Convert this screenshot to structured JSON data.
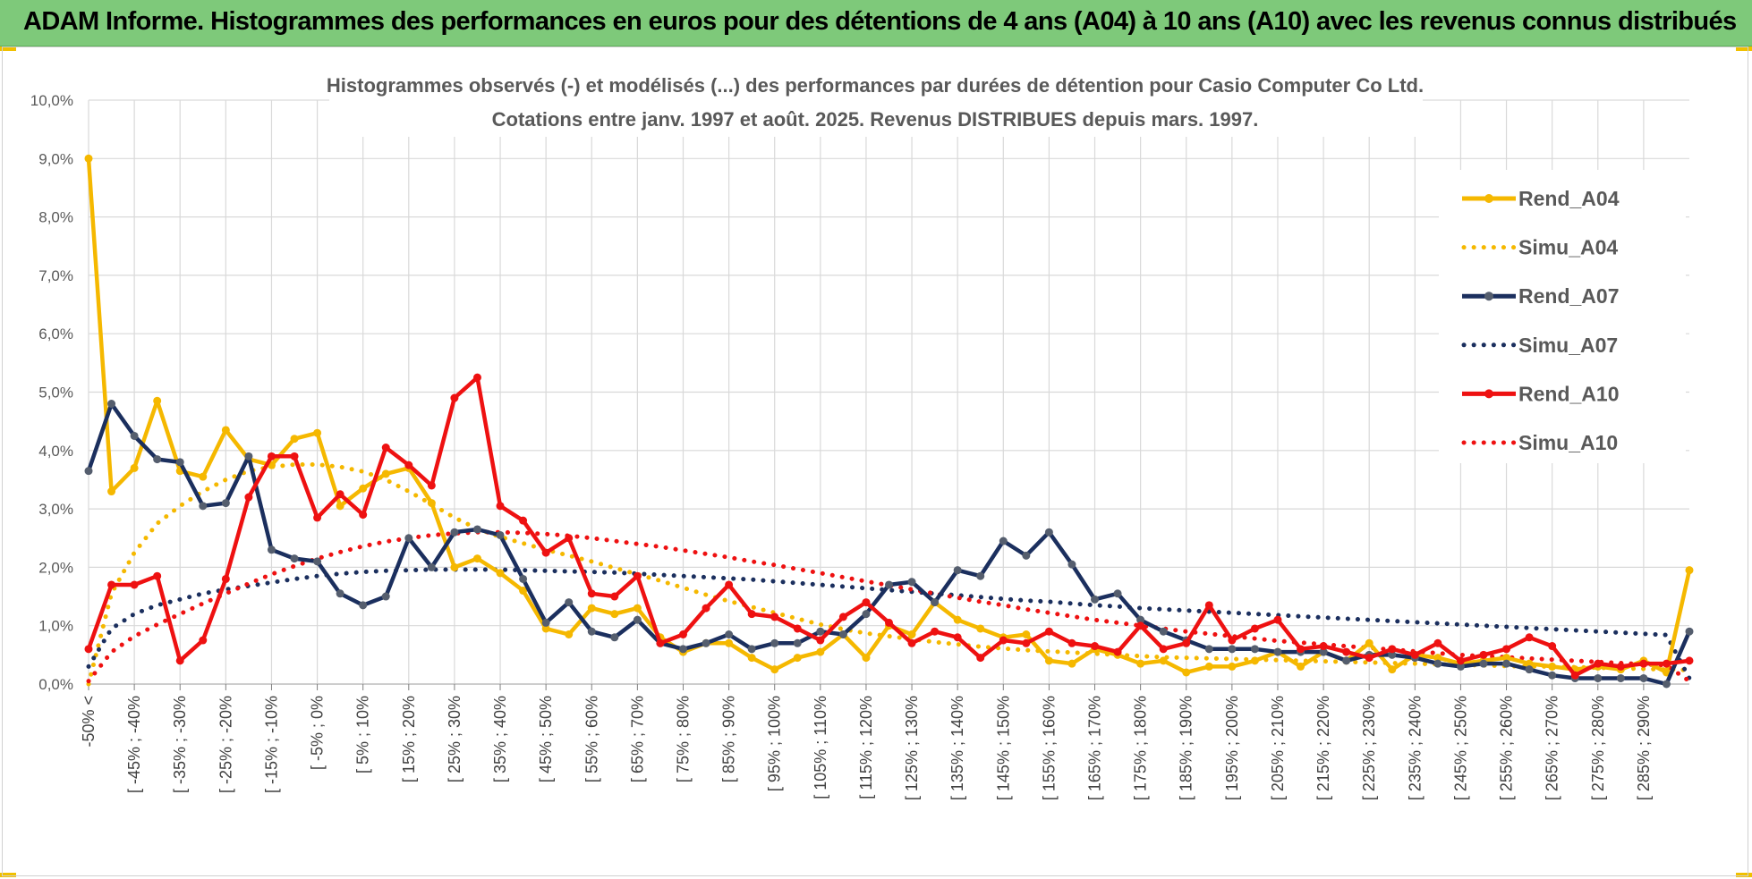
{
  "banner": {
    "title": "ADAM Informe. Histogrammes des performances en euros pour des détentions de 4 ans (A04) à 10 ans (A10) avec les revenus connus distribués"
  },
  "colors": {
    "banner_bg": "#7ec97a",
    "A04": "#f5b800",
    "A07": "#1b2f5e",
    "A10": "#ee1111",
    "grid": "#d9d9d9"
  },
  "chart_data": {
    "type": "line",
    "title_lines": [
      "Histogrammes observés (-) et modélisés (...) des performances par durées de détention pour Casio Computer Co Ltd.",
      "Cotations entre janv. 1997 et août. 2025. Revenus DISTRIBUES depuis mars. 1997."
    ],
    "ylim": [
      0,
      10
    ],
    "y_ticks": [
      "0,0%",
      "1,0%",
      "2,0%",
      "3,0%",
      "4,0%",
      "5,0%",
      "6,0%",
      "7,0%",
      "8,0%",
      "9,0%",
      "10,0%"
    ],
    "grid": true,
    "legend_position": "right",
    "x_labels": [
      "-50% <",
      "[ -45% ; -40%",
      "[ -35% ; -30%",
      "[ -25% ; -20%",
      "[ -15% ; -10%",
      "[ -5% ; 0%",
      "[ 5% ; 10%",
      "[ 15% ; 20%",
      "[ 25% ; 30%",
      "[ 35% ; 40%",
      "[ 45% ; 50%",
      "[ 55% ; 60%",
      "[ 65% ; 70%",
      "[ 75% ; 80%",
      "[ 85% ; 90%",
      "[ 95% ; 100%",
      "[ 105% ; 110%",
      "[ 115% ; 120%",
      "[ 125% ; 130%",
      "[ 135% ; 140%",
      "[ 145% ; 150%",
      "[ 155% ; 160%",
      "[ 165% ; 170%",
      "[ 175% ; 180%",
      "[ 185% ; 190%",
      "[ 195% ; 200%",
      "[ 205% ; 210%",
      "[ 215% ; 220%",
      "[ 225% ; 230%",
      "[ 235% ; 240%",
      "[ 245% ; 250%",
      "[ 255% ; 260%",
      "[ 265% ; 270%",
      "[ 275% ; 280%",
      "[ 285% ; 290%"
    ],
    "series": [
      {
        "name": "Rend_A04",
        "style": "solid",
        "color": "#f5b800",
        "values": [
          9.0,
          3.3,
          3.7,
          4.85,
          3.65,
          3.55,
          4.35,
          3.85,
          3.75,
          4.2,
          4.3,
          3.05,
          3.35,
          3.6,
          3.7,
          3.1,
          2.0,
          2.15,
          1.9,
          1.6,
          0.95,
          0.85,
          1.3,
          1.2,
          1.3,
          0.8,
          0.55,
          0.7,
          0.7,
          0.45,
          0.25,
          0.45,
          0.55,
          0.85,
          0.45,
          1.0,
          0.85,
          1.4,
          1.1,
          0.95,
          0.8,
          0.85,
          0.4,
          0.35,
          0.6,
          0.5,
          0.35,
          0.4,
          0.2,
          0.3,
          0.3,
          0.4,
          0.55,
          0.3,
          0.55,
          0.4,
          0.7,
          0.25,
          0.5,
          0.45,
          0.35,
          0.4,
          0.45,
          0.35,
          0.3,
          0.25,
          0.3,
          0.25,
          0.4,
          0.2,
          1.95
        ]
      },
      {
        "name": "Simu_A04",
        "style": "dotted",
        "color": "#f5b800",
        "values": [
          0.0,
          1.55,
          2.25,
          2.75,
          3.05,
          3.3,
          3.5,
          3.65,
          3.72,
          3.76,
          3.76,
          3.72,
          3.64,
          3.5,
          3.3,
          3.08,
          2.85,
          2.66,
          2.52,
          2.41,
          2.3,
          2.2,
          2.1,
          1.99,
          1.88,
          1.77,
          1.65,
          1.53,
          1.42,
          1.32,
          1.22,
          1.12,
          1.02,
          0.94,
          0.87,
          0.82,
          0.77,
          0.72,
          0.68,
          0.64,
          0.61,
          0.58,
          0.56,
          0.54,
          0.52,
          0.5,
          0.48,
          0.46,
          0.45,
          0.44,
          0.43,
          0.42,
          0.41,
          0.4,
          0.39,
          0.38,
          0.37,
          0.36,
          0.35,
          0.34,
          0.33,
          0.32,
          0.31,
          0.3,
          0.3,
          0.29,
          0.28,
          0.27,
          0.26,
          0.25,
          0.24
        ]
      },
      {
        "name": "Rend_A07",
        "style": "solid",
        "color": "#1b2f5e",
        "values": [
          3.65,
          4.8,
          4.25,
          3.85,
          3.8,
          3.05,
          3.1,
          3.9,
          2.3,
          2.15,
          2.1,
          1.55,
          1.35,
          1.5,
          2.5,
          2.0,
          2.6,
          2.65,
          2.55,
          1.8,
          1.05,
          1.4,
          0.9,
          0.8,
          1.1,
          0.7,
          0.6,
          0.7,
          0.85,
          0.6,
          0.7,
          0.7,
          0.9,
          0.85,
          1.2,
          1.7,
          1.75,
          1.4,
          1.95,
          1.85,
          2.45,
          2.2,
          2.6,
          2.05,
          1.45,
          1.55,
          1.1,
          0.9,
          0.75,
          0.6,
          0.6,
          0.6,
          0.55,
          0.55,
          0.55,
          0.4,
          0.5,
          0.5,
          0.45,
          0.35,
          0.3,
          0.35,
          0.35,
          0.25,
          0.15,
          0.1,
          0.1,
          0.1,
          0.1,
          0.0,
          0.9
        ]
      },
      {
        "name": "Simu_A07",
        "style": "dotted",
        "color": "#1b2f5e",
        "values": [
          0.3,
          0.95,
          1.2,
          1.35,
          1.45,
          1.55,
          1.62,
          1.68,
          1.74,
          1.8,
          1.85,
          1.89,
          1.92,
          1.94,
          1.95,
          1.96,
          1.96,
          1.96,
          1.96,
          1.95,
          1.94,
          1.93,
          1.92,
          1.91,
          1.89,
          1.87,
          1.85,
          1.83,
          1.81,
          1.79,
          1.76,
          1.73,
          1.7,
          1.67,
          1.64,
          1.61,
          1.58,
          1.55,
          1.52,
          1.49,
          1.46,
          1.43,
          1.41,
          1.38,
          1.35,
          1.33,
          1.3,
          1.28,
          1.26,
          1.24,
          1.22,
          1.2,
          1.18,
          1.16,
          1.14,
          1.12,
          1.1,
          1.08,
          1.06,
          1.04,
          1.02,
          1.0,
          0.98,
          0.96,
          0.94,
          0.92,
          0.9,
          0.88,
          0.86,
          0.84,
          0.1
        ]
      },
      {
        "name": "Rend_A10",
        "style": "solid",
        "color": "#ee1111",
        "values": [
          0.6,
          1.7,
          1.7,
          1.85,
          0.4,
          0.75,
          1.8,
          3.2,
          3.9,
          3.9,
          2.85,
          3.25,
          2.9,
          4.05,
          3.75,
          3.4,
          4.9,
          5.25,
          3.05,
          2.8,
          2.25,
          2.5,
          1.55,
          1.5,
          1.85,
          0.7,
          0.85,
          1.3,
          1.7,
          1.2,
          1.15,
          0.95,
          0.75,
          1.15,
          1.4,
          1.05,
          0.7,
          0.9,
          0.8,
          0.45,
          0.75,
          0.7,
          0.9,
          0.7,
          0.65,
          0.55,
          1.0,
          0.6,
          0.7,
          1.35,
          0.75,
          0.95,
          1.1,
          0.6,
          0.65,
          0.55,
          0.45,
          0.6,
          0.5,
          0.7,
          0.4,
          0.5,
          0.6,
          0.8,
          0.65,
          0.15,
          0.35,
          0.3,
          0.35,
          0.35,
          0.4
        ]
      },
      {
        "name": "Simu_A10",
        "style": "dotted",
        "color": "#ee1111",
        "values": [
          0.05,
          0.55,
          0.82,
          1.02,
          1.2,
          1.38,
          1.55,
          1.72,
          1.88,
          2.02,
          2.15,
          2.26,
          2.36,
          2.44,
          2.5,
          2.55,
          2.58,
          2.6,
          2.6,
          2.59,
          2.57,
          2.54,
          2.5,
          2.45,
          2.4,
          2.35,
          2.29,
          2.23,
          2.17,
          2.1,
          2.04,
          1.97,
          1.9,
          1.83,
          1.76,
          1.69,
          1.62,
          1.55,
          1.48,
          1.41,
          1.35,
          1.28,
          1.22,
          1.16,
          1.1,
          1.05,
          1.0,
          0.95,
          0.9,
          0.86,
          0.82,
          0.78,
          0.74,
          0.71,
          0.68,
          0.65,
          0.62,
          0.59,
          0.56,
          0.53,
          0.5,
          0.48,
          0.46,
          0.44,
          0.42,
          0.4,
          0.38,
          0.36,
          0.34,
          0.32,
          0.05
        ]
      }
    ]
  }
}
